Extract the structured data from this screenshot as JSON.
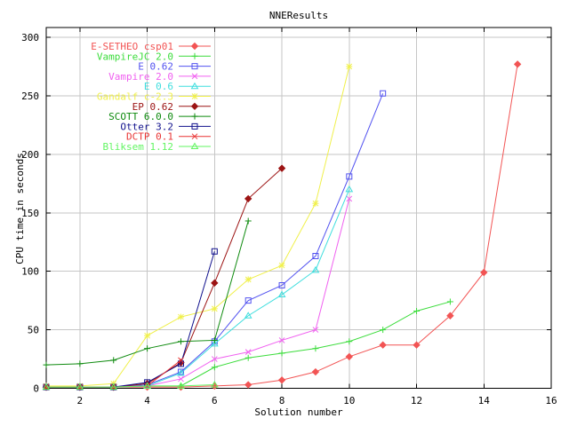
{
  "chart_data": {
    "type": "line",
    "title": "NNEResults",
    "xlabel": "Solution number",
    "ylabel": "CPU time in seconds",
    "xlim": [
      1,
      16
    ],
    "ylim": [
      0,
      300
    ],
    "x_ticks": [
      2,
      4,
      6,
      8,
      10,
      12,
      14,
      16
    ],
    "y_ticks": [
      0,
      50,
      100,
      150,
      200,
      250,
      300
    ],
    "grid": true,
    "legend_position": "top-left-inside",
    "colors": {
      "grid": "#c6c6c6",
      "axis": "#000000",
      "background": "#ffffff"
    },
    "series": [
      {
        "name": "E-SETHEO csp01",
        "color": "#f25454",
        "marker": "diamond",
        "points": [
          [
            1,
            1
          ],
          [
            2,
            1
          ],
          [
            3,
            1
          ],
          [
            4,
            1
          ],
          [
            5,
            1
          ],
          [
            6,
            2
          ],
          [
            7,
            3
          ],
          [
            8,
            7
          ],
          [
            9,
            14
          ],
          [
            10,
            27
          ],
          [
            11,
            37
          ],
          [
            12,
            37
          ],
          [
            13,
            62
          ],
          [
            14,
            99
          ],
          [
            15,
            277
          ]
        ]
      },
      {
        "name": "VampireJC 2.0",
        "color": "#3bdc3b",
        "marker": "plus",
        "points": [
          [
            1,
            1
          ],
          [
            2,
            1
          ],
          [
            3,
            1
          ],
          [
            4,
            2
          ],
          [
            5,
            2
          ],
          [
            6,
            18
          ],
          [
            7,
            26
          ],
          [
            8,
            30
          ],
          [
            9,
            34
          ],
          [
            10,
            40
          ],
          [
            11,
            50
          ],
          [
            12,
            66
          ],
          [
            13,
            74
          ]
        ]
      },
      {
        "name": "E 0.62",
        "color": "#5353f0",
        "marker": "square",
        "points": [
          [
            1,
            1
          ],
          [
            2,
            1
          ],
          [
            3,
            1
          ],
          [
            4,
            3
          ],
          [
            5,
            14
          ],
          [
            6,
            40
          ],
          [
            7,
            75
          ],
          [
            8,
            88
          ],
          [
            9,
            113
          ],
          [
            10,
            181
          ],
          [
            11,
            252
          ]
        ]
      },
      {
        "name": "Vampire 2.0",
        "color": "#f060f0",
        "marker": "cross",
        "points": [
          [
            1,
            1
          ],
          [
            2,
            1
          ],
          [
            3,
            1
          ],
          [
            4,
            2
          ],
          [
            5,
            8
          ],
          [
            6,
            25
          ],
          [
            7,
            31
          ],
          [
            8,
            41
          ],
          [
            9,
            50
          ],
          [
            10,
            162
          ]
        ]
      },
      {
        "name": "E 0.6",
        "color": "#3fdede",
        "marker": "triangle",
        "points": [
          [
            1,
            1
          ],
          [
            2,
            1
          ],
          [
            3,
            1
          ],
          [
            4,
            2
          ],
          [
            5,
            13
          ],
          [
            6,
            38
          ],
          [
            7,
            62
          ],
          [
            8,
            80
          ],
          [
            9,
            101
          ],
          [
            10,
            170
          ]
        ]
      },
      {
        "name": "Gandalf c-2.3",
        "color": "#f0f04a",
        "marker": "star",
        "points": [
          [
            1,
            2
          ],
          [
            2,
            2
          ],
          [
            3,
            4
          ],
          [
            4,
            45
          ],
          [
            5,
            61
          ],
          [
            6,
            68
          ],
          [
            7,
            93
          ],
          [
            8,
            105
          ],
          [
            9,
            158
          ],
          [
            10,
            275
          ]
        ]
      },
      {
        "name": "EP 0.62",
        "color": "#9c1414",
        "marker": "diamond",
        "points": [
          [
            1,
            1
          ],
          [
            2,
            1
          ],
          [
            3,
            1
          ],
          [
            4,
            4
          ],
          [
            5,
            22
          ],
          [
            6,
            90
          ],
          [
            7,
            162
          ],
          [
            8,
            188
          ]
        ]
      },
      {
        "name": "SCOTT 6.0.0",
        "color": "#0e8a0e",
        "marker": "plus",
        "points": [
          [
            1,
            20
          ],
          [
            2,
            21
          ],
          [
            3,
            24
          ],
          [
            4,
            34
          ],
          [
            5,
            40
          ],
          [
            6,
            41
          ],
          [
            7,
            143
          ]
        ]
      },
      {
        "name": "Otter 3.2",
        "color": "#10108c",
        "marker": "square",
        "points": [
          [
            1,
            1
          ],
          [
            2,
            1
          ],
          [
            3,
            1
          ],
          [
            4,
            5
          ],
          [
            5,
            21
          ],
          [
            6,
            117
          ]
        ]
      },
      {
        "name": "DCTP 0.1",
        "color": "#e83434",
        "marker": "cross",
        "points": [
          [
            1,
            1
          ],
          [
            2,
            1
          ],
          [
            3,
            1
          ],
          [
            4,
            2
          ],
          [
            5,
            24
          ]
        ]
      },
      {
        "name": "Bliksem 1.12",
        "color": "#62f562",
        "marker": "triangle",
        "points": [
          [
            1,
            1
          ],
          [
            2,
            1
          ],
          [
            3,
            1
          ],
          [
            4,
            2
          ],
          [
            5,
            2
          ],
          [
            6,
            3
          ]
        ]
      }
    ]
  }
}
